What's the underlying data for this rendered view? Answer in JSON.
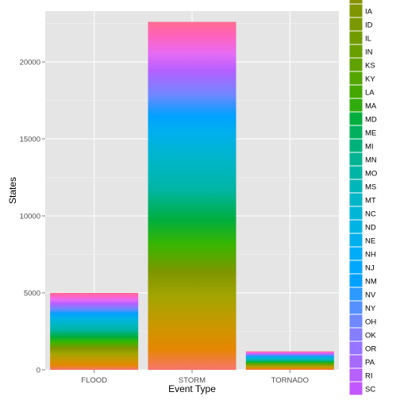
{
  "chart_data": {
    "type": "bar",
    "stacked": true,
    "title": "",
    "xlabel": "Event Type",
    "ylabel": "States",
    "ylim": [
      0,
      23300
    ],
    "yticks": [
      0,
      5000,
      10000,
      15000,
      20000
    ],
    "grid": true,
    "legend_position": "right",
    "categories": [
      "FLOOD",
      "STORM",
      "TORNADO"
    ],
    "totals": [
      5000,
      22600,
      1200
    ],
    "legend_visible": [
      {
        "label": "IA",
        "color": "#7F9600"
      },
      {
        "label": "ID",
        "color": "#7A9800"
      },
      {
        "label": "IL",
        "color": "#729B00"
      },
      {
        "label": "IN",
        "color": "#699F00"
      },
      {
        "label": "KS",
        "color": "#5FA200"
      },
      {
        "label": "KY",
        "color": "#53A500"
      },
      {
        "label": "LA",
        "color": "#45A800"
      },
      {
        "label": "MA",
        "color": "#31AB0E"
      },
      {
        "label": "MD",
        "color": "#00AE3D"
      },
      {
        "label": "ME",
        "color": "#00B05F"
      },
      {
        "label": "MI",
        "color": "#00B27A"
      },
      {
        "label": "MN",
        "color": "#00B491"
      },
      {
        "label": "MO",
        "color": "#00B5A5"
      },
      {
        "label": "MS",
        "color": "#00B6B7"
      },
      {
        "label": "MT",
        "color": "#00B6C7"
      },
      {
        "label": "NC",
        "color": "#00B5D5"
      },
      {
        "label": "ND",
        "color": "#00B3E2"
      },
      {
        "label": "NE",
        "color": "#00B0EC"
      },
      {
        "label": "NH",
        "color": "#00ACF5"
      },
      {
        "label": "NJ",
        "color": "#00A7FC"
      },
      {
        "label": "NM",
        "color": "#00A1FF"
      },
      {
        "label": "NV",
        "color": "#2D9AFF"
      },
      {
        "label": "NY",
        "color": "#5491FF"
      },
      {
        "label": "OH",
        "color": "#6F88FF"
      },
      {
        "label": "OK",
        "color": "#857EFF"
      },
      {
        "label": "OR",
        "color": "#9774FF"
      },
      {
        "label": "PA",
        "color": "#A76AFF"
      },
      {
        "label": "RI",
        "color": "#B560FF"
      },
      {
        "label": "SC",
        "color": "#C257FF"
      }
    ],
    "bar_gradient_stops": [
      {
        "at": 0.0,
        "color": "#F8766D"
      },
      {
        "at": 0.06,
        "color": "#E58700"
      },
      {
        "at": 0.13,
        "color": "#C99800"
      },
      {
        "at": 0.21,
        "color": "#A3A500"
      },
      {
        "at": 0.28,
        "color": "#7F9600"
      },
      {
        "at": 0.36,
        "color": "#39B600"
      },
      {
        "at": 0.43,
        "color": "#00AE3D"
      },
      {
        "at": 0.52,
        "color": "#00B5A5"
      },
      {
        "at": 0.6,
        "color": "#00B6C7"
      },
      {
        "at": 0.68,
        "color": "#00B0EC"
      },
      {
        "at": 0.73,
        "color": "#00A1FF"
      },
      {
        "at": 0.79,
        "color": "#6F88FF"
      },
      {
        "at": 0.86,
        "color": "#B560FF"
      },
      {
        "at": 0.91,
        "color": "#E76BF3"
      },
      {
        "at": 0.96,
        "color": "#FF62BC"
      },
      {
        "at": 1.0,
        "color": "#FF6C91"
      }
    ]
  }
}
